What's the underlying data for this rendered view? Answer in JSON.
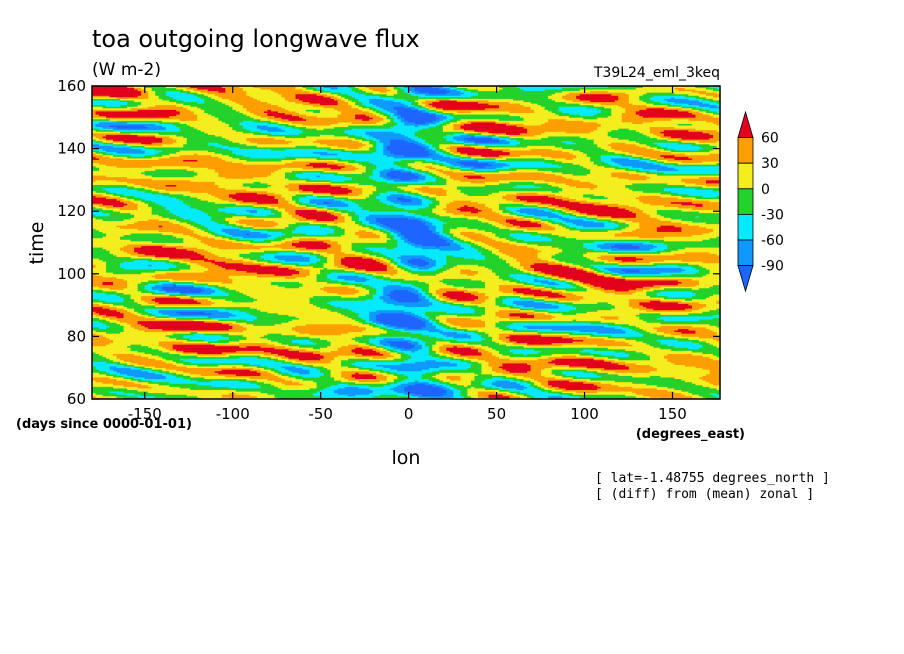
{
  "chart_data": {
    "type": "heatmap",
    "title": "toa outgoing longwave flux",
    "subtitle": "(W m-2)",
    "run_label": "T39L24_eml_3keq",
    "xlabel": "lon",
    "ylabel": "time",
    "x_unit_label": "(degrees_east)",
    "y_unit_label": "(days since 0000-01-01)",
    "xlim": [
      -180,
      177
    ],
    "ylim": [
      60,
      160
    ],
    "x_ticks": [
      -150,
      -100,
      -50,
      0,
      50,
      100,
      150
    ],
    "y_ticks": [
      60,
      80,
      100,
      120,
      140,
      160
    ],
    "x_tick_labels": [
      "-150",
      "-100",
      "-50",
      "0",
      "50",
      "100",
      "150"
    ],
    "y_tick_labels": [
      "60",
      "80",
      "100",
      "120",
      "140",
      "160"
    ],
    "colorbar": {
      "labels": [
        "60",
        "30",
        "0",
        "-30",
        "-60",
        "-90"
      ],
      "bins": [
        {
          "range": "> 60",
          "color": "#e3001c"
        },
        {
          "range": "30 to 60",
          "color": "#ff9e00"
        },
        {
          "range": "0 to 30",
          "color": "#f5ee1e"
        },
        {
          "range": "-30 to 0",
          "color": "#23d22b"
        },
        {
          "range": "-60 to -30",
          "color": "#05eafc"
        },
        {
          "range": "-90 to -60",
          "color": "#0f99ff"
        },
        {
          "range": "< -90",
          "color": "#1e64ff"
        }
      ]
    },
    "annotations": [
      "[ lat=-1.48755 degrees_north ]",
      "[ (diff) from (mean) zonal ]"
    ],
    "features": {
      "low_olr_band_lon": 0,
      "low_olr_band_drift_deg_per_day": -0.05
    }
  }
}
